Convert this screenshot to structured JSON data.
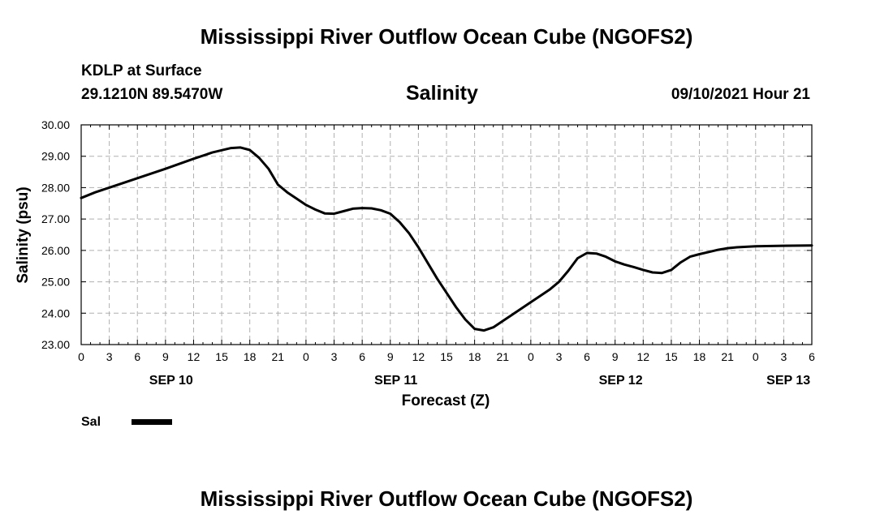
{
  "header": {
    "title": "Mississippi River Outflow Ocean Cube (NGOFS2)",
    "station": "KDLP at Surface",
    "coords": "29.1210N  89.5470W",
    "datetime": "09/10/2021 Hour 21"
  },
  "footer": {
    "title": "Mississippi River Outflow Ocean Cube (NGOFS2)"
  },
  "legend": {
    "label": "Sal",
    "color": "#000000"
  },
  "chart_data": {
    "type": "line",
    "title": "Salinity",
    "xlabel": "Forecast (Z)",
    "ylabel": "Salinity (psu)",
    "xlim": [
      0,
      78
    ],
    "ylim": [
      23,
      30
    ],
    "grid": true,
    "x_ticks": [
      0,
      3,
      6,
      9,
      12,
      15,
      18,
      21,
      24,
      27,
      30,
      33,
      36,
      39,
      42,
      45,
      48,
      51,
      54,
      57,
      60,
      63,
      66,
      69,
      72,
      75,
      78
    ],
    "x_tick_labels": [
      "0",
      "3",
      "6",
      "9",
      "12",
      "15",
      "18",
      "21",
      "0",
      "3",
      "6",
      "9",
      "12",
      "15",
      "18",
      "21",
      "0",
      "3",
      "6",
      "9",
      "12",
      "15",
      "18",
      "21",
      "0",
      "3",
      "6"
    ],
    "y_ticks": [
      23,
      24,
      25,
      26,
      27,
      28,
      29,
      30
    ],
    "y_tick_labels": [
      "23.00",
      "24.00",
      "25.00",
      "26.00",
      "27.00",
      "28.00",
      "29.00",
      "30.00"
    ],
    "date_labels": [
      {
        "x": 9.6,
        "label": "SEP 10"
      },
      {
        "x": 33.6,
        "label": "SEP 11"
      },
      {
        "x": 57.6,
        "label": "SEP 12"
      },
      {
        "x": 75.5,
        "label": "SEP 13"
      }
    ],
    "series": [
      {
        "name": "Sal",
        "color": "#000000",
        "x": [
          0,
          1.5,
          3,
          6,
          9,
          12,
          14,
          16,
          17,
          18,
          19,
          20,
          21,
          22,
          23,
          24,
          25,
          26,
          27,
          28,
          29,
          30,
          31,
          32,
          33,
          34,
          35,
          36,
          37,
          38,
          39,
          40,
          41,
          42,
          43,
          44,
          45,
          46,
          47,
          48,
          49,
          50,
          51,
          52,
          53,
          54,
          55,
          56,
          57,
          58,
          59,
          60,
          61,
          62,
          63,
          64,
          65,
          66,
          67,
          68,
          69,
          70,
          72,
          75,
          78
        ],
        "values": [
          27.67,
          27.85,
          28.0,
          28.3,
          28.6,
          28.92,
          29.12,
          29.26,
          29.28,
          29.2,
          28.95,
          28.6,
          28.1,
          27.85,
          27.65,
          27.45,
          27.3,
          27.18,
          27.17,
          27.25,
          27.33,
          27.35,
          27.34,
          27.28,
          27.17,
          26.9,
          26.55,
          26.1,
          25.6,
          25.1,
          24.65,
          24.2,
          23.8,
          23.5,
          23.45,
          23.55,
          23.75,
          23.95,
          24.15,
          24.35,
          24.55,
          24.75,
          25.0,
          25.35,
          25.75,
          25.92,
          25.9,
          25.8,
          25.65,
          25.55,
          25.47,
          25.38,
          25.3,
          25.28,
          25.38,
          25.62,
          25.8,
          25.88,
          25.95,
          26.02,
          26.07,
          26.1,
          26.13,
          26.15,
          26.16
        ]
      }
    ]
  }
}
